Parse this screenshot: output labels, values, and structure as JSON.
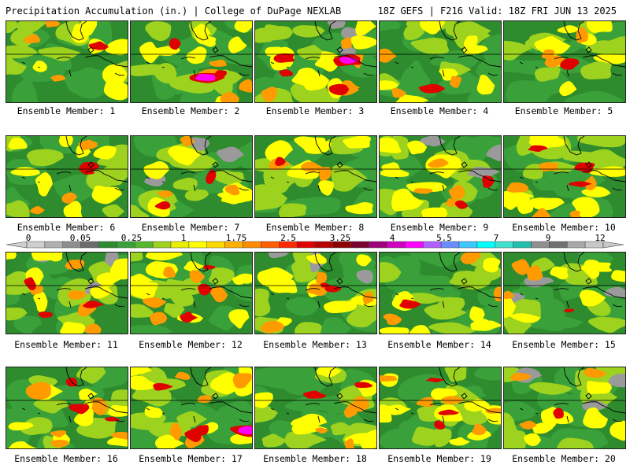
{
  "header": {
    "title": "Precipitation Accumulation (in.) | College of DuPage NEXLAB",
    "run_info": "18Z GEFS | F216 Valid: 18Z FRI JUN 13 2025"
  },
  "colorbar": {
    "labels": [
      "0",
      "0.05",
      "0.25",
      "1",
      "1.75",
      "2.5",
      "3.25",
      "4",
      "5.5",
      "7",
      "9",
      "12"
    ],
    "colors": [
      "#cfcfcf",
      "#b0b0b0",
      "#8e8e8e",
      "#6c6c6c",
      "#2e8b2e",
      "#3aa13a",
      "#55b82f",
      "#9dd21e",
      "#e8f000",
      "#ffff00",
      "#ffd700",
      "#ffb000",
      "#ff8c00",
      "#ff5f00",
      "#ff2a00",
      "#e00000",
      "#b80000",
      "#8f0000",
      "#7a0030",
      "#a0007a",
      "#d000c0",
      "#ff00ff",
      "#b060ff",
      "#6a8cff",
      "#3fc8ff",
      "#00ffff",
      "#40e0d0",
      "#20c0b0",
      "#909090",
      "#707070",
      "#a8a8a8",
      "#c8c8c8"
    ]
  },
  "caption_prefix": "Ensemble Member: ",
  "members": [
    {
      "label": "Ensemble Member: 1"
    },
    {
      "label": "Ensemble Member: 2"
    },
    {
      "label": "Ensemble Member: 3"
    },
    {
      "label": "Ensemble Member: 4"
    },
    {
      "label": "Ensemble Member: 5"
    },
    {
      "label": "Ensemble Member: 6"
    },
    {
      "label": "Ensemble Member: 7"
    },
    {
      "label": "Ensemble Member: 8"
    },
    {
      "label": "Ensemble Member: 9"
    },
    {
      "label": "Ensemble Member: 10"
    },
    {
      "label": "Ensemble Member: 11"
    },
    {
      "label": "Ensemble Member: 12"
    },
    {
      "label": "Ensemble Member: 13"
    },
    {
      "label": "Ensemble Member: 14"
    },
    {
      "label": "Ensemble Member: 15"
    },
    {
      "label": "Ensemble Member: 16"
    },
    {
      "label": "Ensemble Member: 17"
    },
    {
      "label": "Ensemble Member: 18"
    },
    {
      "label": "Ensemble Member: 19"
    },
    {
      "label": "Ensemble Member: 20"
    }
  ],
  "legend_colors": {
    "dark_green": "#2e8b2e",
    "green": "#3aa13a",
    "light_green": "#9dd21e",
    "yellow": "#ffff00",
    "orange": "#ff9a00",
    "red": "#e00000",
    "magenta": "#ff00ff",
    "gray": "#9a9a9a"
  }
}
